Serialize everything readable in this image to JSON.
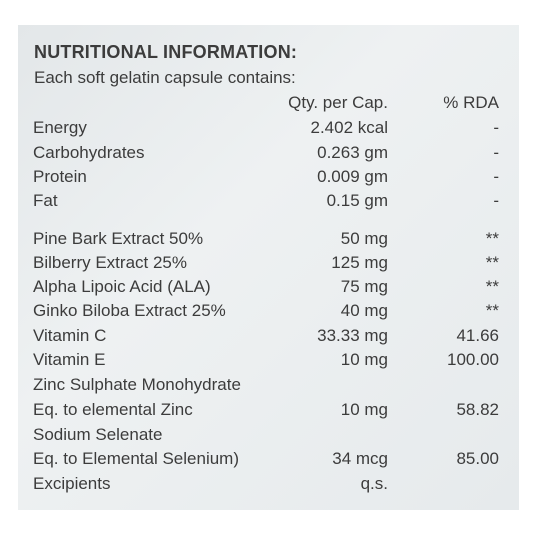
{
  "heading": "NUTRITIONAL INFORMATION:",
  "intro": "Each soft gelatin capsule contains:",
  "columns": {
    "qty": "Qty. per Cap.",
    "rda": "% RDA"
  },
  "rows": [
    {
      "name": "Energy",
      "qty": "2.402 kcal",
      "rda": "-"
    },
    {
      "name": "Carbohydrates",
      "qty": "0.263 gm",
      "rda": "-"
    },
    {
      "name": "Protein",
      "qty": "0.009 gm",
      "rda": "-"
    },
    {
      "name": "Fat",
      "qty": "0.15 gm",
      "rda": "-"
    },
    {
      "name": "Pine Bark Extract 50%",
      "qty": "50 mg",
      "rda": "**"
    },
    {
      "name": "Bilberry Extract 25%",
      "qty": "125 mg",
      "rda": "**"
    },
    {
      "name": "Alpha Lipoic Acid (ALA)",
      "qty": "75 mg",
      "rda": "**"
    },
    {
      "name": "Ginko Biloba Extract  25%",
      "qty": "40 mg",
      "rda": "**"
    },
    {
      "name": "Vitamin C",
      "qty": "33.33 mg",
      "rda": "41.66"
    },
    {
      "name": "Vitamin E",
      "qty": "10 mg",
      "rda": "100.00"
    },
    {
      "name": "Zinc Sulphate Monohydrate",
      "qty": "",
      "rda": ""
    },
    {
      "name": "Eq. to elemental Zinc",
      "qty": "10 mg",
      "rda": "58.82"
    },
    {
      "name": "Sodium Selenate",
      "qty": "",
      "rda": ""
    },
    {
      "name": "Eq. to  Elemental Selenium)",
      "qty": "34 mcg",
      "rda": "85.00"
    },
    {
      "name": "Excipients",
      "qty": "q.s.",
      "rda": ""
    }
  ]
}
